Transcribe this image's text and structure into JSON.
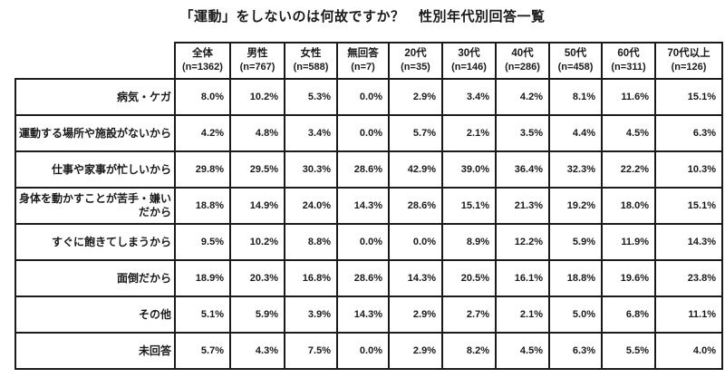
{
  "title": "「運動」をしないのは何故ですか？　性別年代別回答一覧",
  "colors": {
    "text": "#1a1a1a",
    "border": "#1a1a1a",
    "background": "#ffffff"
  },
  "table": {
    "columns": [
      {
        "label": "全体",
        "n": "(n=1362)"
      },
      {
        "label": "男性",
        "n": "(n=767)"
      },
      {
        "label": "女性",
        "n": "(n=588)"
      },
      {
        "label": "無回答",
        "n": "(n=7)"
      },
      {
        "label": "20代",
        "n": "(n=35)"
      },
      {
        "label": "30代",
        "n": "(n=146)"
      },
      {
        "label": "40代",
        "n": "(n=286)"
      },
      {
        "label": "50代",
        "n": "(n=458)"
      },
      {
        "label": "60代",
        "n": "(n=311)"
      },
      {
        "label": "70代以上",
        "n": "(n=126)"
      }
    ],
    "rows": [
      {
        "label": "病気・ケガ",
        "values": [
          "8.0%",
          "10.2%",
          "5.3%",
          "0.0%",
          "2.9%",
          "3.4%",
          "4.2%",
          "8.1%",
          "11.6%",
          "15.1%"
        ]
      },
      {
        "label": "運動する場所や施設がないから",
        "values": [
          "4.2%",
          "4.8%",
          "3.4%",
          "0.0%",
          "5.7%",
          "2.1%",
          "3.5%",
          "4.4%",
          "4.5%",
          "6.3%"
        ]
      },
      {
        "label": "仕事や家事が忙しいから",
        "values": [
          "29.8%",
          "29.5%",
          "30.3%",
          "28.6%",
          "42.9%",
          "39.0%",
          "36.4%",
          "32.3%",
          "22.2%",
          "10.3%"
        ]
      },
      {
        "label": "身体を動かすことが苦手・嫌いだから",
        "values": [
          "18.8%",
          "14.9%",
          "24.0%",
          "14.3%",
          "28.6%",
          "15.1%",
          "21.3%",
          "19.2%",
          "18.0%",
          "15.1%"
        ]
      },
      {
        "label": "すぐに飽きてしまうから",
        "values": [
          "9.5%",
          "10.2%",
          "8.8%",
          "0.0%",
          "0.0%",
          "8.9%",
          "12.2%",
          "5.9%",
          "11.9%",
          "14.3%"
        ]
      },
      {
        "label": "面倒だから",
        "values": [
          "18.9%",
          "20.3%",
          "16.8%",
          "28.6%",
          "14.3%",
          "20.5%",
          "16.1%",
          "18.8%",
          "19.6%",
          "23.8%"
        ]
      },
      {
        "label": "その他",
        "values": [
          "5.1%",
          "5.9%",
          "3.9%",
          "14.3%",
          "2.9%",
          "2.7%",
          "2.1%",
          "5.0%",
          "6.8%",
          "11.1%"
        ]
      },
      {
        "label": "未回答",
        "values": [
          "5.7%",
          "4.3%",
          "7.5%",
          "0.0%",
          "2.9%",
          "8.2%",
          "4.5%",
          "6.3%",
          "5.5%",
          "4.0%"
        ]
      }
    ]
  },
  "chart_data": {
    "type": "table",
    "title": "「運動」をしないのは何故ですか？　性別年代別回答一覧",
    "unit": "%",
    "columns": [
      "全体 (n=1362)",
      "男性 (n=767)",
      "女性 (n=588)",
      "無回答 (n=7)",
      "20代 (n=35)",
      "30代 (n=146)",
      "40代 (n=286)",
      "50代 (n=458)",
      "60代 (n=311)",
      "70代以上 (n=126)"
    ],
    "row_labels": [
      "病気・ケガ",
      "運動する場所や施設がないから",
      "仕事や家事が忙しいから",
      "身体を動かすことが苦手・嫌いだから",
      "すぐに飽きてしまうから",
      "面倒だから",
      "その他",
      "未回答"
    ],
    "values": [
      [
        8.0,
        10.2,
        5.3,
        0.0,
        2.9,
        3.4,
        4.2,
        8.1,
        11.6,
        15.1
      ],
      [
        4.2,
        4.8,
        3.4,
        0.0,
        5.7,
        2.1,
        3.5,
        4.4,
        4.5,
        6.3
      ],
      [
        29.8,
        29.5,
        30.3,
        28.6,
        42.9,
        39.0,
        36.4,
        32.3,
        22.2,
        10.3
      ],
      [
        18.8,
        14.9,
        24.0,
        14.3,
        28.6,
        15.1,
        21.3,
        19.2,
        18.0,
        15.1
      ],
      [
        9.5,
        10.2,
        8.8,
        0.0,
        0.0,
        8.9,
        12.2,
        5.9,
        11.9,
        14.3
      ],
      [
        18.9,
        20.3,
        16.8,
        28.6,
        14.3,
        20.5,
        16.1,
        18.8,
        19.6,
        23.8
      ],
      [
        5.1,
        5.9,
        3.9,
        14.3,
        2.9,
        2.7,
        2.1,
        5.0,
        6.8,
        11.1
      ],
      [
        5.7,
        4.3,
        7.5,
        0.0,
        2.9,
        8.2,
        4.5,
        6.3,
        5.5,
        4.0
      ]
    ]
  }
}
